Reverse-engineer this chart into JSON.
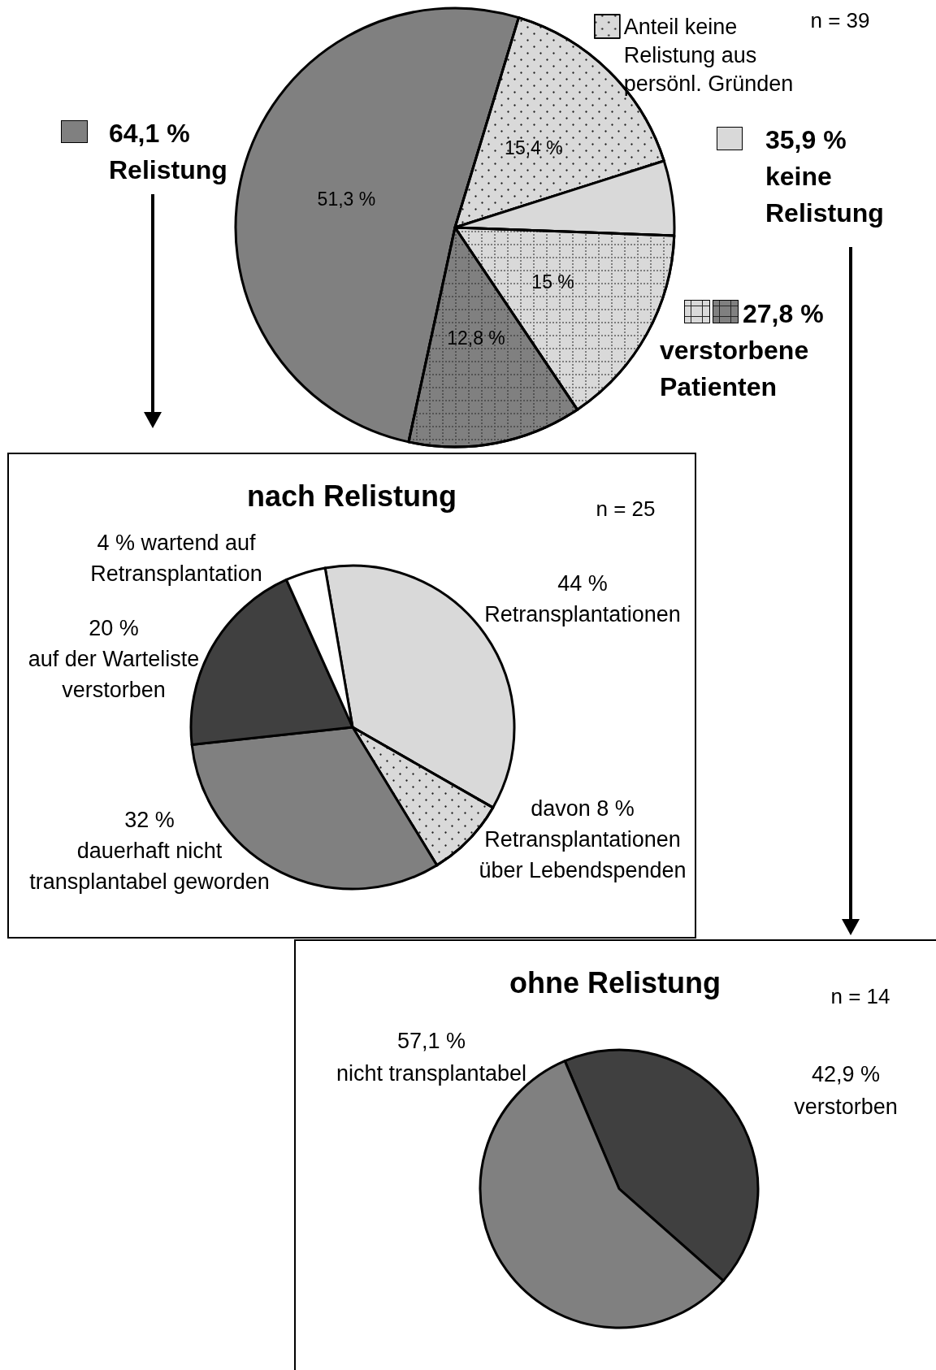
{
  "chart_data": [
    {
      "type": "pie",
      "categories": [
        null,
        "Anteil keine\nRelistung aus\npersönl. Gründen",
        null,
        null,
        null
      ],
      "values": [
        51.3,
        15.4,
        5.5,
        15,
        12.8
      ],
      "colors": [
        "#808080",
        "#d9d9d9",
        "#d9d9d9",
        "#d9d9d9",
        "#808080"
      ],
      "value_labels": [
        "51,3 %",
        "15,4 %",
        null,
        "15 %",
        "12,8 %"
      ],
      "legend": "top right",
      "annotations": [
        "64,1 %\nRelistung",
        "35,9 %\nkeine\nRelistung",
        "27,8 %\nverstorbene\nPatienten",
        "n = 39"
      ]
    },
    {
      "type": "pie",
      "title": "nach Relistung",
      "categories": [
        null,
        "Retransplantationen\nüber Lebendspenden",
        "dauerhaft nicht\ntransplantabel geworden",
        "auf der Warteliste\nverstorben",
        "wartend auf\nRetransplantation"
      ],
      "values": [
        36,
        8,
        32,
        20,
        4
      ],
      "colors": [
        "#d9d9d9",
        "#d9d9d9",
        "#808080",
        "#404040",
        "#ffffff"
      ],
      "value_labels": [
        null,
        "davon 8 %",
        "32 %",
        "20 %",
        "4 %"
      ],
      "annotations": [
        "n = 25",
        "44 %\nRetransplantationen"
      ]
    },
    {
      "type": "pie",
      "title": "ohne Relistung",
      "categories": [
        "verstorben",
        "nicht transplantabel"
      ],
      "values": [
        42.9,
        57.1
      ],
      "colors": [
        "#404040",
        "#808080"
      ],
      "value_labels": [
        "42,9 %",
        "57,1 %"
      ],
      "annotations": [
        "n = 14"
      ]
    }
  ]
}
